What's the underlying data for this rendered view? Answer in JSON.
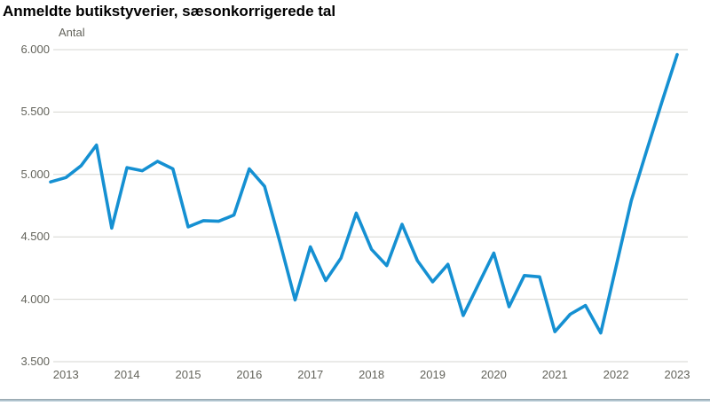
{
  "header": {
    "title": "Anmeldte butikstyverier, sæsonkorrigerede tal"
  },
  "chart_data": {
    "type": "line",
    "title": "Anmeldte butikstyverier, sæsonkorrigerede tal",
    "series_name": "Anmeldte butikstyverier (sæsonkorrigeret)",
    "unit_label": "Antal",
    "x": [
      "2012K4",
      "2013K1",
      "2013K2",
      "2013K3",
      "2013K4",
      "2014K1",
      "2014K2",
      "2014K3",
      "2014K4",
      "2015K1",
      "2015K2",
      "2015K3",
      "2015K4",
      "2016K1",
      "2016K2",
      "2016K3",
      "2016K4",
      "2017K1",
      "2017K2",
      "2017K3",
      "2017K4",
      "2018K1",
      "2018K2",
      "2018K3",
      "2018K4",
      "2019K1",
      "2019K2",
      "2019K3",
      "2019K4",
      "2020K1",
      "2020K2",
      "2020K3",
      "2020K4",
      "2021K1",
      "2021K2",
      "2021K3",
      "2021K4",
      "2022K1",
      "2022K2",
      "2022K3",
      "2022K4",
      "2023K1"
    ],
    "values": [
      4940,
      4975,
      5070,
      5235,
      4570,
      5055,
      5030,
      5105,
      5045,
      4580,
      4630,
      4625,
      4675,
      5045,
      4905,
      4460,
      3995,
      4420,
      4150,
      4330,
      4690,
      4400,
      4270,
      4600,
      4310,
      4140,
      4280,
      3870,
      4120,
      4370,
      3940,
      4190,
      4180,
      3740,
      3880,
      3950,
      3730,
      4260,
      4790,
      5190,
      5580,
      5960
    ],
    "x_tick_labels": [
      "2013",
      "2014",
      "2015",
      "2016",
      "2017",
      "2018",
      "2019",
      "2020",
      "2021",
      "2022",
      "2023"
    ],
    "y_ticks": {
      "values": [
        6000,
        5500,
        5000,
        4500,
        4000,
        3500
      ],
      "labels": [
        "6.000",
        "5.500",
        "5.000",
        "4.500",
        "4.000",
        "3.500"
      ]
    },
    "ylim": [
      3500,
      6000
    ],
    "grid": "horizontal",
    "legend": "none",
    "line_color": "#1590d2",
    "grid_color": "#d6d6d0",
    "axis_text_color": "#63635b",
    "title_color": "#000000",
    "divider_color": "#a9bcc6"
  }
}
